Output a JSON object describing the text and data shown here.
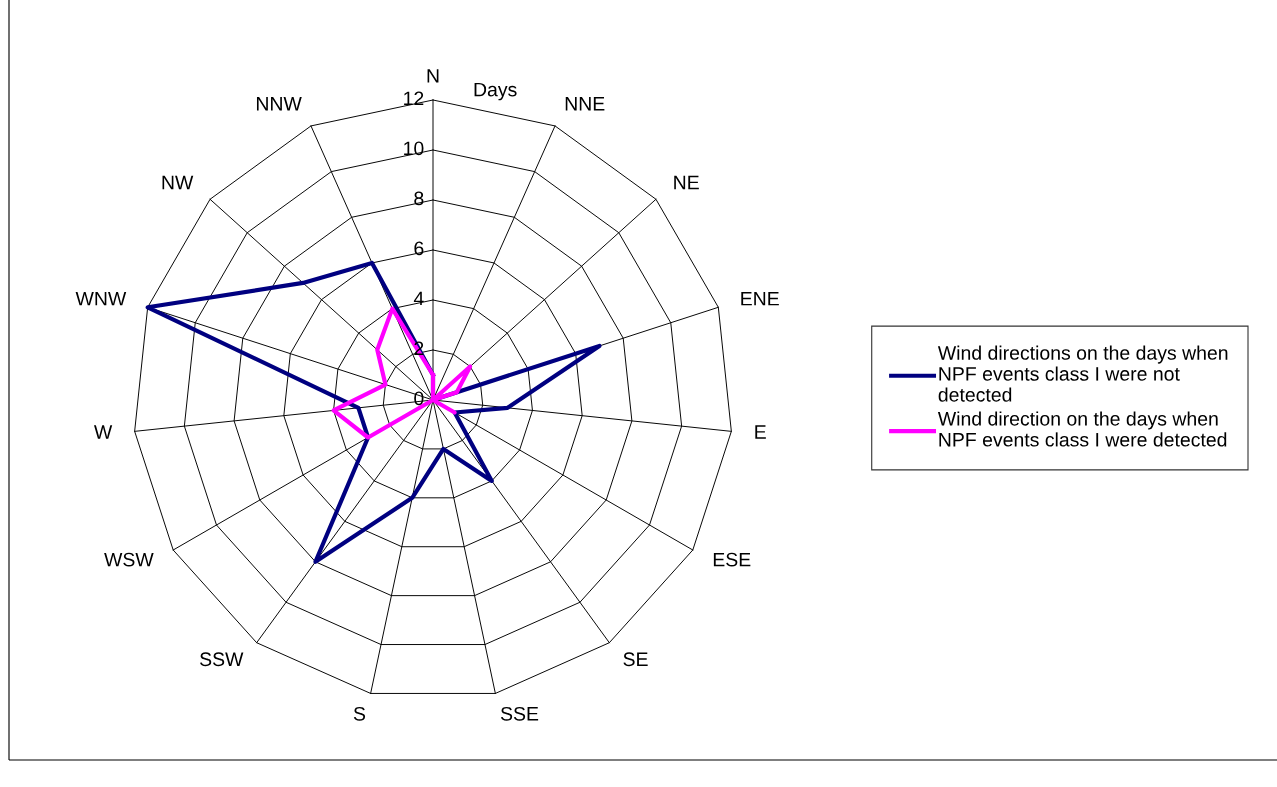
{
  "chart_data": {
    "type": "radar",
    "ylabel": "Days",
    "categories": [
      "N",
      "NNE",
      "NE",
      "ENE",
      "E",
      "ESE",
      "SE",
      "SSE",
      "S",
      "SSW",
      "WSW",
      "W",
      "WNW",
      "NW",
      "NNW"
    ],
    "ylim": [
      0,
      12
    ],
    "yticks": [
      0,
      2,
      4,
      6,
      8,
      10,
      12
    ],
    "grid": true,
    "legend": "right",
    "line_style": "solid",
    "marker": "none",
    "series": [
      {
        "name": "Wind directions on the days when NPF events class I were not detected",
        "color": "#000080",
        "values": [
          1,
          0,
          0,
          7,
          3,
          1,
          4,
          2,
          4,
          8,
          3,
          3,
          12,
          7,
          6
        ]
      },
      {
        "name": "Wind direction on the days when NPF events class I were detected",
        "color": "#ff00ff",
        "values": [
          1,
          0,
          2,
          1,
          0,
          1,
          0,
          0,
          0,
          0,
          3,
          4,
          2,
          3,
          4
        ]
      }
    ]
  }
}
